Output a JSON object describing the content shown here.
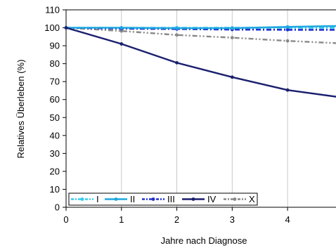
{
  "chart_data": {
    "type": "line",
    "title": "",
    "xlabel": "Jahre nach Diagnose",
    "ylabel": "Relatives Überleben (%)",
    "xlim": [
      0,
      4.9
    ],
    "ylim": [
      0,
      110
    ],
    "x_ticks": [
      0,
      1,
      2,
      3,
      4
    ],
    "y_ticks": [
      0,
      10,
      20,
      30,
      40,
      50,
      60,
      70,
      80,
      90,
      100,
      110
    ],
    "grid": "vertical",
    "legend_position": "bottom-left inside",
    "series": [
      {
        "name": "I",
        "color": "#33ccee",
        "dash": "dash-dot",
        "marker": "dot",
        "x": [
          0,
          1,
          2,
          3,
          4,
          4.9
        ],
        "y": [
          100,
          100,
          100,
          100,
          100,
          100
        ]
      },
      {
        "name": "II",
        "color": "#1fa8e0",
        "dash": "solid",
        "marker": "dot",
        "x": [
          0,
          1,
          2,
          3,
          4,
          4.9
        ],
        "y": [
          100,
          100,
          99.8,
          99.8,
          100.5,
          101
        ]
      },
      {
        "name": "III",
        "color": "#1f2fd0",
        "dash": "dash-dot",
        "marker": "dot",
        "x": [
          0,
          1,
          2,
          3,
          4,
          4.9
        ],
        "y": [
          100,
          99.5,
          99.3,
          99,
          98.9,
          98.9
        ]
      },
      {
        "name": "IV",
        "color": "#1a1f6e",
        "dash": "solid",
        "marker": "dot",
        "x": [
          0,
          1,
          2,
          3,
          4,
          4.9
        ],
        "y": [
          100,
          91,
          80.5,
          72.5,
          65.3,
          61.5
        ]
      },
      {
        "name": "X",
        "color": "#888888",
        "dash": "dash-dot-dot",
        "marker": "dot",
        "x": [
          0,
          1,
          2,
          3,
          4,
          4.9
        ],
        "y": [
          100,
          98.2,
          96,
          94.5,
          92.7,
          91.4
        ]
      }
    ]
  }
}
